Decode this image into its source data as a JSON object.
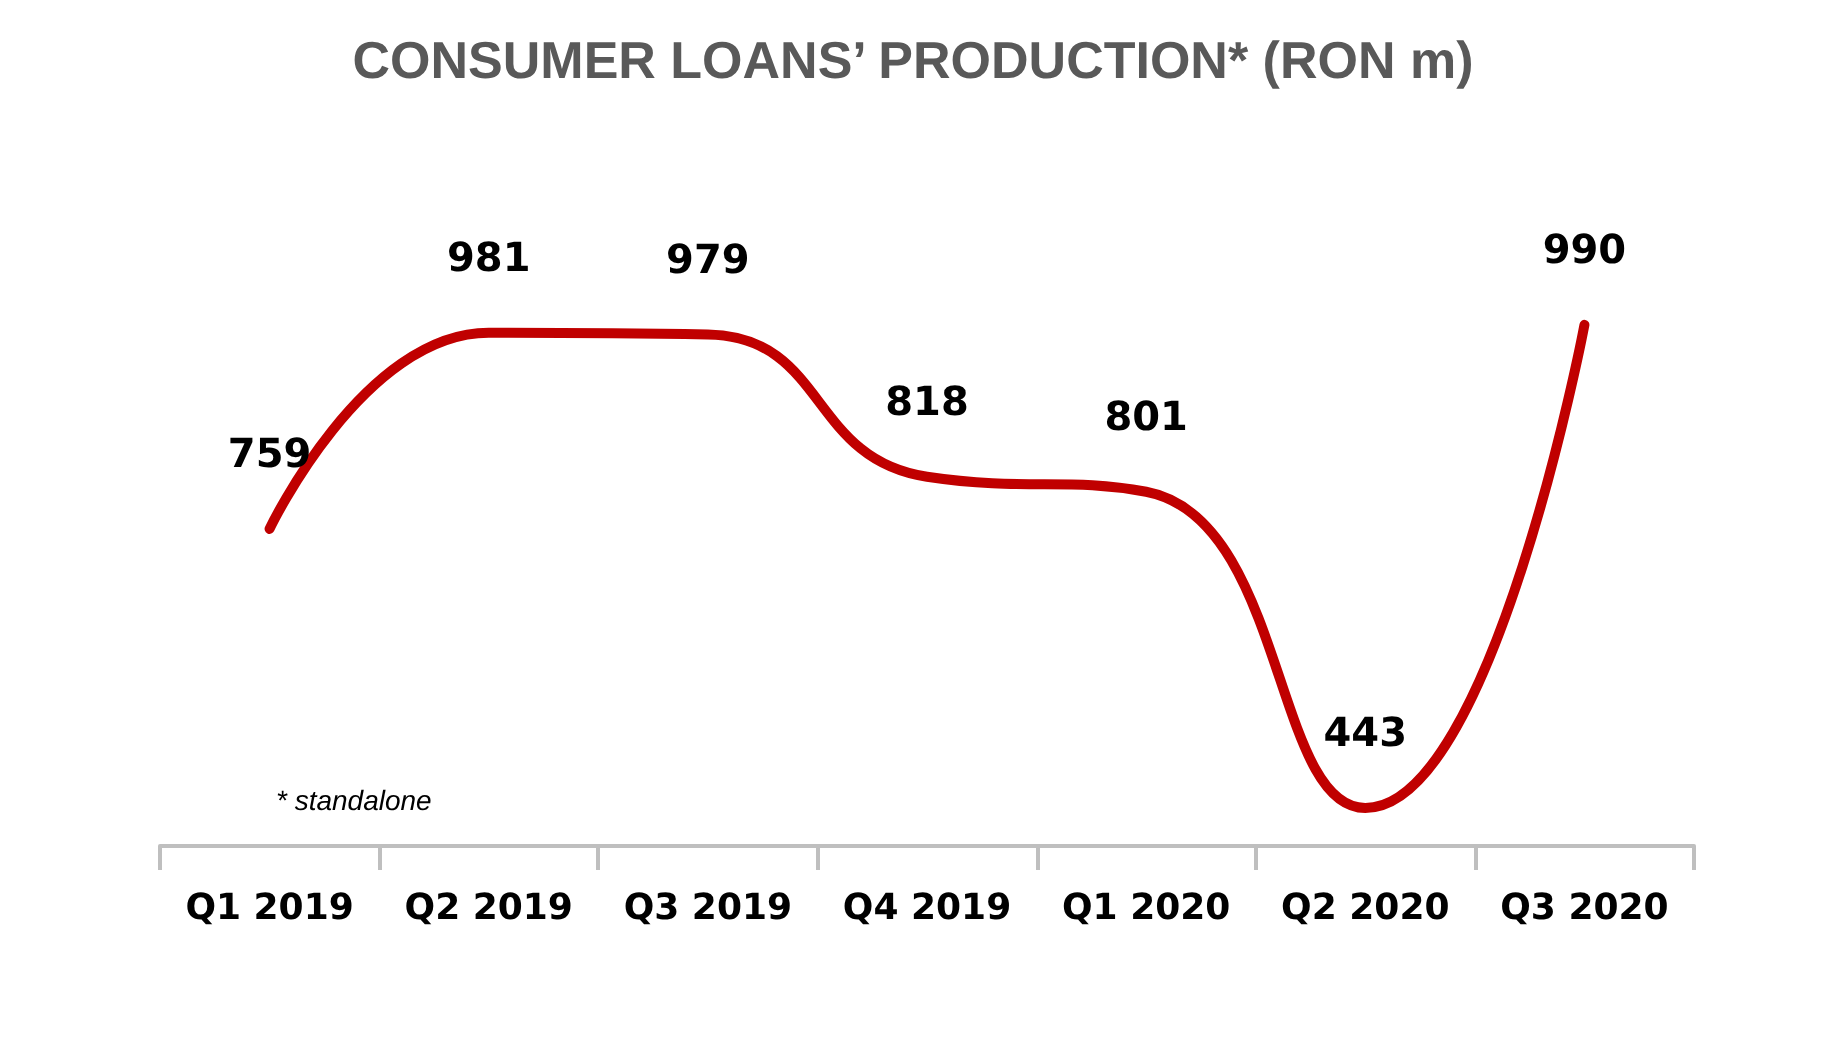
{
  "chart_data": {
    "type": "line",
    "title": "CONSUMER LOANS’ PRODUCTION* (RON m)",
    "categories": [
      "Q1 2019",
      "Q2 2019",
      "Q3 2019",
      "Q4 2019",
      "Q1 2020",
      "Q2 2020",
      "Q3 2020"
    ],
    "series": [
      {
        "color": "#c00000",
        "values": [
          759,
          981,
          979,
          818,
          801,
          443,
          990
        ]
      }
    ],
    "data_labels": true,
    "marker": "none",
    "line_style": "solid",
    "annotations": [
      "* standalone"
    ]
  }
}
